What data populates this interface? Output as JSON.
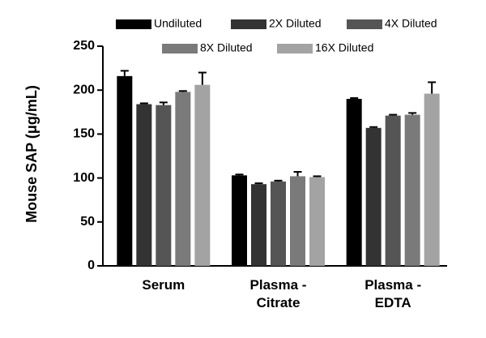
{
  "chart_data": {
    "type": "bar",
    "y_label": "Mouse SAP (μg/mL)",
    "categories": [
      "Serum",
      "Plasma - Citrate",
      "Plasma - EDTA"
    ],
    "series": [
      {
        "name": "Undiluted",
        "color": "#000000",
        "values": [
          216,
          103,
          190
        ],
        "errors": [
          6,
          1,
          1
        ]
      },
      {
        "name": "2X Diluted",
        "color": "#333333",
        "values": [
          184,
          93,
          157
        ],
        "errors": [
          1,
          1,
          1
        ]
      },
      {
        "name": "4X Diluted",
        "color": "#555555",
        "values": [
          183,
          96,
          171
        ],
        "errors": [
          3,
          1,
          1
        ]
      },
      {
        "name": "8X Diluted",
        "color": "#7a7a7a",
        "values": [
          198,
          102,
          172
        ],
        "errors": [
          1,
          5,
          2
        ]
      },
      {
        "name": "16X Diluted",
        "color": "#a3a3a3",
        "values": [
          206,
          101,
          196
        ],
        "errors": [
          14,
          1,
          13
        ]
      }
    ],
    "ylim": [
      0,
      250
    ],
    "yticks": [
      0,
      50,
      100,
      150,
      200,
      250
    ],
    "grid": false
  }
}
